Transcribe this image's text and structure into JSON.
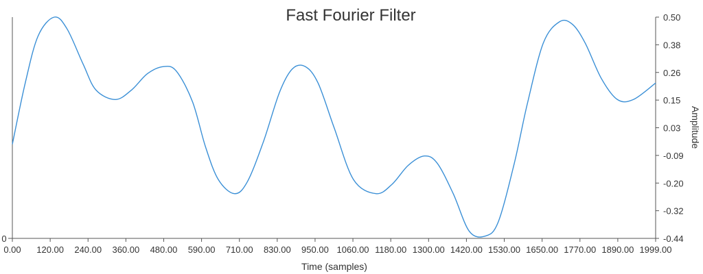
{
  "chart_data": {
    "type": "line",
    "title": "Fast Fourier Filter",
    "xlabel": "Time (samples)",
    "ylabel": "Amplitude",
    "left_axis_tick": "0",
    "xlim": [
      0,
      1999
    ],
    "ylim": [
      -0.44,
      0.5
    ],
    "x_tick_labels": [
      "0.00",
      "120.00",
      "240.00",
      "360.00",
      "480.00",
      "590.00",
      "710.00",
      "830.00",
      "950.00",
      "1060.00",
      "1180.00",
      "1300.00",
      "1420.00",
      "1530.00",
      "1650.00",
      "1770.00",
      "1890.00",
      "1999.00"
    ],
    "y_tick_labels": [
      "0.50",
      "0.38",
      "0.26",
      "0.15",
      "0.03",
      "-0.09",
      "-0.20",
      "-0.32",
      "-0.44"
    ],
    "grid": false,
    "legend": "none",
    "series": [
      {
        "color": "#3a8fd6",
        "x": [
          0,
          40,
          80,
          130,
          170,
          220,
          260,
          320,
          370,
          420,
          470,
          510,
          560,
          600,
          640,
          690,
          730,
          780,
          830,
          870,
          910,
          950,
          1000,
          1060,
          1130,
          1180,
          1230,
          1280,
          1320,
          1370,
          1420,
          1470,
          1510,
          1560,
          1600,
          1650,
          1700,
          1740,
          1780,
          1830,
          1880,
          1930,
          1999
        ],
        "y": [
          -0.04,
          0.22,
          0.42,
          0.5,
          0.45,
          0.3,
          0.19,
          0.15,
          0.19,
          0.26,
          0.29,
          0.27,
          0.14,
          -0.05,
          -0.19,
          -0.25,
          -0.2,
          -0.03,
          0.18,
          0.28,
          0.29,
          0.22,
          0.03,
          -0.19,
          -0.25,
          -0.21,
          -0.13,
          -0.09,
          -0.12,
          -0.25,
          -0.41,
          -0.43,
          -0.37,
          -0.12,
          0.13,
          0.39,
          0.48,
          0.47,
          0.39,
          0.24,
          0.15,
          0.15,
          0.22
        ]
      }
    ]
  }
}
